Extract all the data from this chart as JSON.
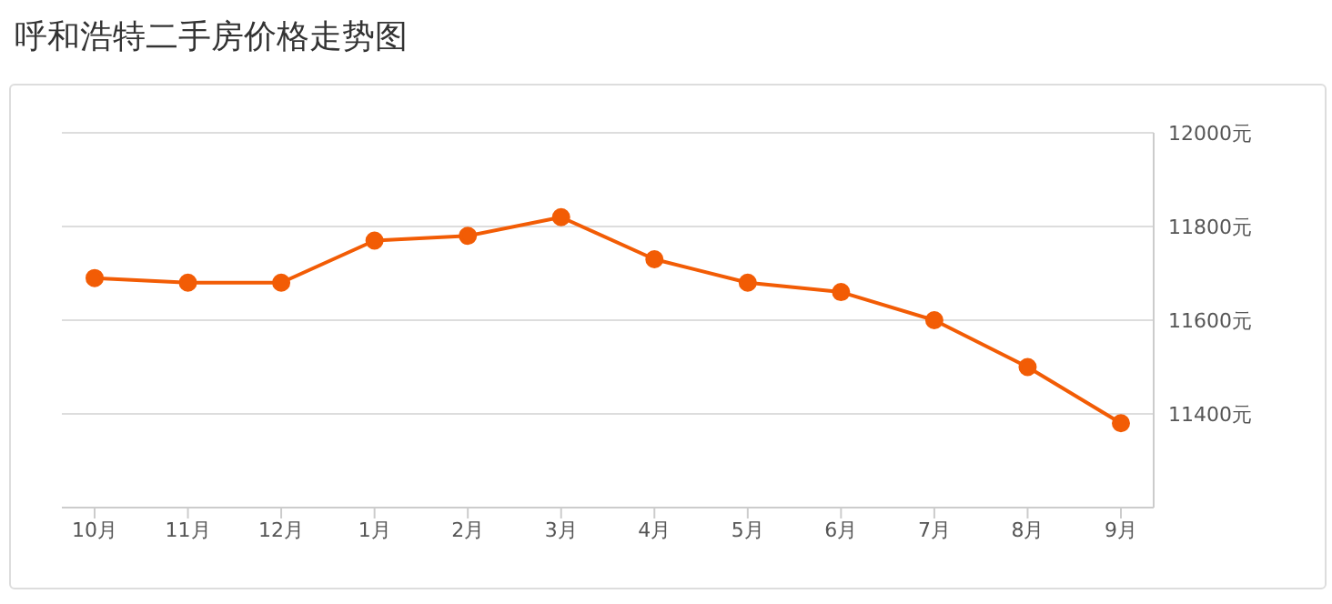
{
  "chart_data": {
    "type": "line",
    "title": "呼和浩特二手房价格走势图",
    "categories": [
      "10月",
      "11月",
      "12月",
      "1月",
      "2月",
      "3月",
      "4月",
      "5月",
      "6月",
      "7月",
      "8月",
      "9月"
    ],
    "series": [
      {
        "color": "#f25c05",
        "values": [
          11690,
          11680,
          11680,
          11770,
          11780,
          11820,
          11730,
          11680,
          11660,
          11600,
          11500,
          11380
        ]
      }
    ],
    "ylim": [
      11200,
      12000
    ],
    "yticks": [
      {
        "value": 11200,
        "label": null
      },
      {
        "value": 11400,
        "label": "11400元"
      },
      {
        "value": 11600,
        "label": "11600元"
      },
      {
        "value": 11800,
        "label": "11800元"
      },
      {
        "value": 12000,
        "label": "12000元"
      }
    ],
    "grid": "y",
    "marker": "circle",
    "line_style": "solid",
    "legend": false
  }
}
